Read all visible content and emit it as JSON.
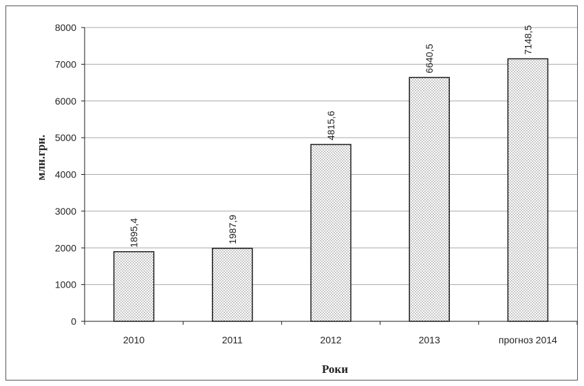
{
  "chart_data": {
    "type": "bar",
    "title": "",
    "xlabel": "Роки",
    "ylabel": "млн.грн.",
    "categories": [
      "2010",
      "2011",
      "2012",
      "2013",
      "прогноз 2014"
    ],
    "values": [
      1895.4,
      1987.9,
      4815.6,
      6640.5,
      7148.5
    ],
    "data_labels": [
      "1895,4",
      "1987,9",
      "4815,6",
      "6640,5",
      "7148,5"
    ],
    "ylim": [
      0,
      8000
    ],
    "yticks": [
      0,
      1000,
      2000,
      3000,
      4000,
      5000,
      6000,
      7000,
      8000
    ],
    "grid": true,
    "legend": "none",
    "bar_pattern": "dotted",
    "colors": {
      "bar_fill": "#ffffff",
      "bar_dots": "#6e6e6e",
      "bar_edge": "#1a1a1a",
      "grid": "#a8a8a8",
      "axis": "#1a1a1a"
    }
  }
}
